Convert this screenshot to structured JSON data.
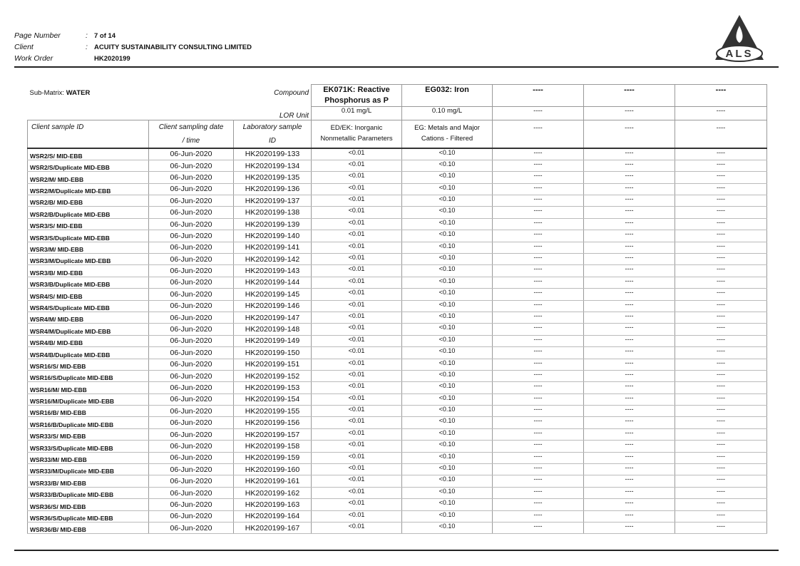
{
  "header": {
    "fields": [
      {
        "label": "Page Number",
        "separator": ":",
        "value": "7 of 14"
      },
      {
        "label": "Client",
        "separator": ":",
        "value": "ACUITY SUSTAINABILITY CONSULTING LIMITED"
      },
      {
        "label": "Work Order",
        "value": "HK2020199"
      }
    ],
    "logo": "ALS"
  },
  "table": {
    "sub_matrix_label": "Sub-Matrix:",
    "sub_matrix": "WATER",
    "compound_label": "Compound",
    "lor_label": "LOR Unit",
    "sample_id_label": "Client sample ID",
    "date_label": [
      "Client sampling date",
      "/ time"
    ],
    "lab_label": [
      "Laboratory sample",
      "ID"
    ],
    "compounds": [
      {
        "name": "EK071K: Reactive Phosphorus as P",
        "lor": "0.01 mg/L",
        "method": "ED/EK: Inorganic Nonmetallic Parameters"
      },
      {
        "name": "EG032: Iron",
        "lor": "0.10 mg/L",
        "method": "EG: Metals and Major Cations - Filtered"
      },
      {
        "name": "----",
        "lor": "----",
        "method": "----"
      },
      {
        "name": "----",
        "lor": "----",
        "method": "----"
      },
      {
        "name": "----",
        "lor": "----",
        "method": "----"
      }
    ],
    "rows": [
      [
        "WSR2/S/ MID-EBB",
        "06-Jun-2020",
        "HK2020199-133",
        "<0.01",
        "<0.10",
        "----",
        "----",
        "----"
      ],
      [
        "WSR2/S/Duplicate MID-EBB",
        "06-Jun-2020",
        "HK2020199-134",
        "<0.01",
        "<0.10",
        "----",
        "----",
        "----"
      ],
      [
        "WSR2/M/ MID-EBB",
        "06-Jun-2020",
        "HK2020199-135",
        "<0.01",
        "<0.10",
        "----",
        "----",
        "----"
      ],
      [
        "WSR2/M/Duplicate MID-EBB",
        "06-Jun-2020",
        "HK2020199-136",
        "<0.01",
        "<0.10",
        "----",
        "----",
        "----"
      ],
      [
        "WSR2/B/ MID-EBB",
        "06-Jun-2020",
        "HK2020199-137",
        "<0.01",
        "<0.10",
        "----",
        "----",
        "----"
      ],
      [
        "WSR2/B/Duplicate MID-EBB",
        "06-Jun-2020",
        "HK2020199-138",
        "<0.01",
        "<0.10",
        "----",
        "----",
        "----"
      ],
      [
        "WSR3/S/ MID-EBB",
        "06-Jun-2020",
        "HK2020199-139",
        "<0.01",
        "<0.10",
        "----",
        "----",
        "----"
      ],
      [
        "WSR3/S/Duplicate MID-EBB",
        "06-Jun-2020",
        "HK2020199-140",
        "<0.01",
        "<0.10",
        "----",
        "----",
        "----"
      ],
      [
        "WSR3/M/ MID-EBB",
        "06-Jun-2020",
        "HK2020199-141",
        "<0.01",
        "<0.10",
        "----",
        "----",
        "----"
      ],
      [
        "WSR3/M/Duplicate MID-EBB",
        "06-Jun-2020",
        "HK2020199-142",
        "<0.01",
        "<0.10",
        "----",
        "----",
        "----"
      ],
      [
        "WSR3/B/ MID-EBB",
        "06-Jun-2020",
        "HK2020199-143",
        "<0.01",
        "<0.10",
        "----",
        "----",
        "----"
      ],
      [
        "WSR3/B/Duplicate MID-EBB",
        "06-Jun-2020",
        "HK2020199-144",
        "<0.01",
        "<0.10",
        "----",
        "----",
        "----"
      ],
      [
        "WSR4/S/ MID-EBB",
        "06-Jun-2020",
        "HK2020199-145",
        "<0.01",
        "<0.10",
        "----",
        "----",
        "----"
      ],
      [
        "WSR4/S/Duplicate MID-EBB",
        "06-Jun-2020",
        "HK2020199-146",
        "<0.01",
        "<0.10",
        "----",
        "----",
        "----"
      ],
      [
        "WSR4/M/ MID-EBB",
        "06-Jun-2020",
        "HK2020199-147",
        "<0.01",
        "<0.10",
        "----",
        "----",
        "----"
      ],
      [
        "WSR4/M/Duplicate MID-EBB",
        "06-Jun-2020",
        "HK2020199-148",
        "<0.01",
        "<0.10",
        "----",
        "----",
        "----"
      ],
      [
        "WSR4/B/ MID-EBB",
        "06-Jun-2020",
        "HK2020199-149",
        "<0.01",
        "<0.10",
        "----",
        "----",
        "----"
      ],
      [
        "WSR4/B/Duplicate MID-EBB",
        "06-Jun-2020",
        "HK2020199-150",
        "<0.01",
        "<0.10",
        "----",
        "----",
        "----"
      ],
      [
        "WSR16/S/ MID-EBB",
        "06-Jun-2020",
        "HK2020199-151",
        "<0.01",
        "<0.10",
        "----",
        "----",
        "----"
      ],
      [
        "WSR16/S/Duplicate MID-EBB",
        "06-Jun-2020",
        "HK2020199-152",
        "<0.01",
        "<0.10",
        "----",
        "----",
        "----"
      ],
      [
        "WSR16/M/ MID-EBB",
        "06-Jun-2020",
        "HK2020199-153",
        "<0.01",
        "<0.10",
        "----",
        "----",
        "----"
      ],
      [
        "WSR16/M/Duplicate MID-EBB",
        "06-Jun-2020",
        "HK2020199-154",
        "<0.01",
        "<0.10",
        "----",
        "----",
        "----"
      ],
      [
        "WSR16/B/ MID-EBB",
        "06-Jun-2020",
        "HK2020199-155",
        "<0.01",
        "<0.10",
        "----",
        "----",
        "----"
      ],
      [
        "WSR16/B/Duplicate MID-EBB",
        "06-Jun-2020",
        "HK2020199-156",
        "<0.01",
        "<0.10",
        "----",
        "----",
        "----"
      ],
      [
        "WSR33/S/ MID-EBB",
        "06-Jun-2020",
        "HK2020199-157",
        "<0.01",
        "<0.10",
        "----",
        "----",
        "----"
      ],
      [
        "WSR33/S/Duplicate MID-EBB",
        "06-Jun-2020",
        "HK2020199-158",
        "<0.01",
        "<0.10",
        "----",
        "----",
        "----"
      ],
      [
        "WSR33/M/ MID-EBB",
        "06-Jun-2020",
        "HK2020199-159",
        "<0.01",
        "<0.10",
        "----",
        "----",
        "----"
      ],
      [
        "WSR33/M/Duplicate MID-EBB",
        "06-Jun-2020",
        "HK2020199-160",
        "<0.01",
        "<0.10",
        "----",
        "----",
        "----"
      ],
      [
        "WSR33/B/ MID-EBB",
        "06-Jun-2020",
        "HK2020199-161",
        "<0.01",
        "<0.10",
        "----",
        "----",
        "----"
      ],
      [
        "WSR33/B/Duplicate MID-EBB",
        "06-Jun-2020",
        "HK2020199-162",
        "<0.01",
        "<0.10",
        "----",
        "----",
        "----"
      ],
      [
        "WSR36/S/ MID-EBB",
        "06-Jun-2020",
        "HK2020199-163",
        "<0.01",
        "<0.10",
        "----",
        "----",
        "----"
      ],
      [
        "WSR36/S/Duplicate MID-EBB",
        "06-Jun-2020",
        "HK2020199-164",
        "<0.01",
        "<0.10",
        "----",
        "----",
        "----"
      ],
      [
        "WSR36/B/ MID-EBB",
        "06-Jun-2020",
        "HK2020199-167",
        "<0.01",
        "<0.10",
        "----",
        "----",
        "----"
      ]
    ]
  }
}
